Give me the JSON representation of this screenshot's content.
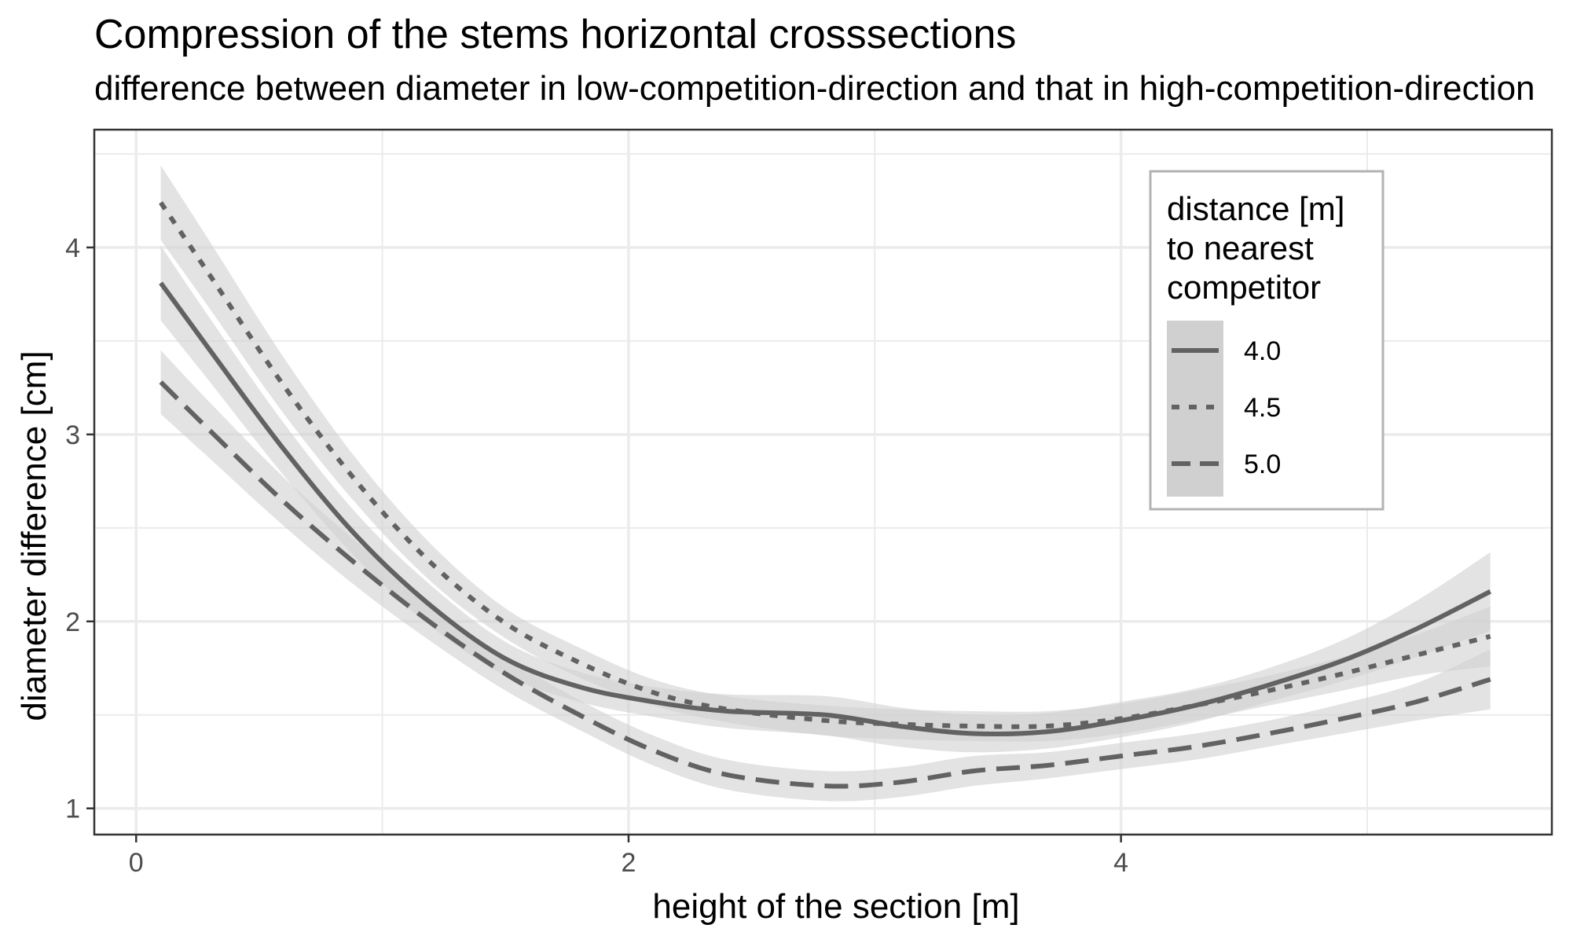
{
  "chart_data": {
    "type": "line",
    "title": "Compression of the stems horizontal crosssections",
    "subtitle": "difference between diameter in low-competition-direction and that in high-competition-direction",
    "xlabel": "height of the section [m]",
    "ylabel": "diameter difference [cm]",
    "xlim": [
      -0.17,
      5.75
    ],
    "ylim": [
      0.86,
      4.63
    ],
    "xticks": [
      0,
      2,
      4
    ],
    "yticks": [
      1,
      2,
      3,
      4
    ],
    "grid": true,
    "legend": {
      "title": [
        "distance [m]",
        "to nearest",
        "competitor"
      ],
      "placement": "top-right",
      "entries": [
        "4.0",
        "4.5",
        "5.0"
      ]
    },
    "colors": {
      "line": "#626262",
      "ribbon": "#d0d0d0",
      "grid": "#ebebeb",
      "panel_border": "#333333",
      "text": "#000000",
      "tick_text": "#4d4d4d"
    },
    "series": [
      {
        "name": "4.0",
        "dash": "solid",
        "x": [
          0.1,
          0.3,
          0.6,
          0.9,
          1.2,
          1.5,
          1.8,
          2.1,
          2.4,
          2.8,
          3.1,
          3.4,
          3.7,
          4.0,
          4.3,
          4.6,
          4.9,
          5.2,
          5.5
        ],
        "y": [
          3.81,
          3.45,
          2.92,
          2.45,
          2.08,
          1.8,
          1.65,
          1.57,
          1.52,
          1.5,
          1.44,
          1.4,
          1.41,
          1.47,
          1.55,
          1.66,
          1.79,
          1.96,
          2.16
        ],
        "lower": [
          3.61,
          3.28,
          2.78,
          2.33,
          1.97,
          1.71,
          1.57,
          1.49,
          1.43,
          1.39,
          1.33,
          1.3,
          1.32,
          1.38,
          1.46,
          1.57,
          1.68,
          1.81,
          1.95
        ],
        "upper": [
          4.01,
          3.62,
          3.06,
          2.57,
          2.19,
          1.89,
          1.73,
          1.65,
          1.61,
          1.6,
          1.54,
          1.5,
          1.51,
          1.57,
          1.64,
          1.75,
          1.9,
          2.11,
          2.37
        ]
      },
      {
        "name": "4.5",
        "dash": "dotted",
        "x": [
          0.1,
          0.3,
          0.6,
          0.9,
          1.2,
          1.5,
          1.8,
          2.1,
          2.4,
          2.8,
          3.1,
          3.4,
          3.7,
          4.0,
          4.3,
          4.6,
          4.9,
          5.2,
          5.5
        ],
        "y": [
          4.24,
          3.85,
          3.26,
          2.74,
          2.31,
          1.99,
          1.78,
          1.62,
          1.53,
          1.47,
          1.45,
          1.44,
          1.44,
          1.48,
          1.55,
          1.63,
          1.72,
          1.82,
          1.92
        ],
        "lower": [
          4.04,
          3.67,
          3.11,
          2.62,
          2.21,
          1.91,
          1.7,
          1.55,
          1.46,
          1.39,
          1.37,
          1.36,
          1.36,
          1.4,
          1.47,
          1.55,
          1.63,
          1.71,
          1.76
        ],
        "upper": [
          4.44,
          4.03,
          3.41,
          2.86,
          2.41,
          2.07,
          1.86,
          1.69,
          1.6,
          1.55,
          1.53,
          1.52,
          1.52,
          1.56,
          1.63,
          1.71,
          1.81,
          1.93,
          2.08
        ]
      },
      {
        "name": "5.0",
        "dash": "dashed",
        "x": [
          0.1,
          0.3,
          0.6,
          0.9,
          1.2,
          1.5,
          1.8,
          2.1,
          2.4,
          2.8,
          3.1,
          3.4,
          3.7,
          4.0,
          4.3,
          4.6,
          4.9,
          5.2,
          5.5
        ],
        "y": [
          3.28,
          3.02,
          2.64,
          2.3,
          1.99,
          1.72,
          1.5,
          1.31,
          1.18,
          1.12,
          1.14,
          1.2,
          1.23,
          1.28,
          1.33,
          1.4,
          1.48,
          1.57,
          1.69
        ],
        "lower": [
          3.11,
          2.87,
          2.51,
          2.18,
          1.89,
          1.63,
          1.42,
          1.23,
          1.1,
          1.04,
          1.06,
          1.12,
          1.16,
          1.21,
          1.26,
          1.33,
          1.4,
          1.47,
          1.53
        ],
        "upper": [
          3.45,
          3.17,
          2.77,
          2.42,
          2.09,
          1.81,
          1.58,
          1.39,
          1.26,
          1.2,
          1.22,
          1.28,
          1.3,
          1.35,
          1.4,
          1.47,
          1.56,
          1.67,
          1.85
        ]
      }
    ]
  }
}
